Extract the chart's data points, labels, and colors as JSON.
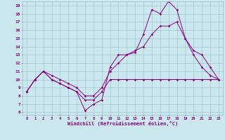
{
  "xlabel": "Windchill (Refroidissement éolien,°C)",
  "background_color": "#cce8ef",
  "grid_color": "#99bbcc",
  "line_color": "#880088",
  "xlim": [
    -0.5,
    23.5
  ],
  "ylim": [
    5.7,
    19.5
  ],
  "yticks": [
    6,
    7,
    8,
    9,
    10,
    11,
    12,
    13,
    14,
    15,
    16,
    17,
    18,
    19
  ],
  "xticks": [
    0,
    1,
    2,
    3,
    4,
    5,
    6,
    7,
    8,
    9,
    10,
    11,
    12,
    13,
    14,
    15,
    16,
    17,
    18,
    19,
    20,
    21,
    22,
    23
  ],
  "curve1_x": [
    0,
    1,
    2,
    3,
    4,
    5,
    6,
    7,
    8,
    9,
    10,
    11,
    12,
    13,
    14,
    15,
    16,
    17,
    18,
    19,
    20,
    21,
    22,
    23
  ],
  "curve1_y": [
    8.5,
    10,
    11,
    10,
    9.5,
    9,
    8.5,
    6.2,
    7.0,
    7.5,
    11.5,
    13.0,
    13.0,
    13.3,
    15.5,
    18.5,
    18.0,
    19.5,
    18.5,
    15.0,
    13.0,
    11.5,
    10.5,
    10.0
  ],
  "curve2_x": [
    0,
    1,
    2,
    3,
    4,
    5,
    6,
    7,
    8,
    9,
    10,
    11,
    12,
    13,
    14,
    15,
    16,
    17,
    18,
    19,
    20,
    21,
    22,
    23
  ],
  "curve2_y": [
    8.5,
    10,
    11,
    10,
    9.5,
    9.0,
    8.5,
    7.5,
    7.5,
    8.5,
    10.0,
    10.0,
    10.0,
    10.0,
    10.0,
    10.0,
    10.0,
    10.0,
    10.0,
    10.0,
    10.0,
    10.0,
    10.0,
    10.0
  ],
  "curve3_x": [
    0,
    1,
    2,
    3,
    4,
    5,
    6,
    7,
    8,
    9,
    10,
    11,
    12,
    13,
    14,
    15,
    16,
    17,
    18,
    19,
    20,
    21,
    22,
    23
  ],
  "curve3_y": [
    8.5,
    10.0,
    11.0,
    10.5,
    10.0,
    9.5,
    9.0,
    8.0,
    8.0,
    9.0,
    11.0,
    12.0,
    13.0,
    13.5,
    14.0,
    15.5,
    16.5,
    16.5,
    17.0,
    15.0,
    13.5,
    13.0,
    11.5,
    10.0
  ]
}
